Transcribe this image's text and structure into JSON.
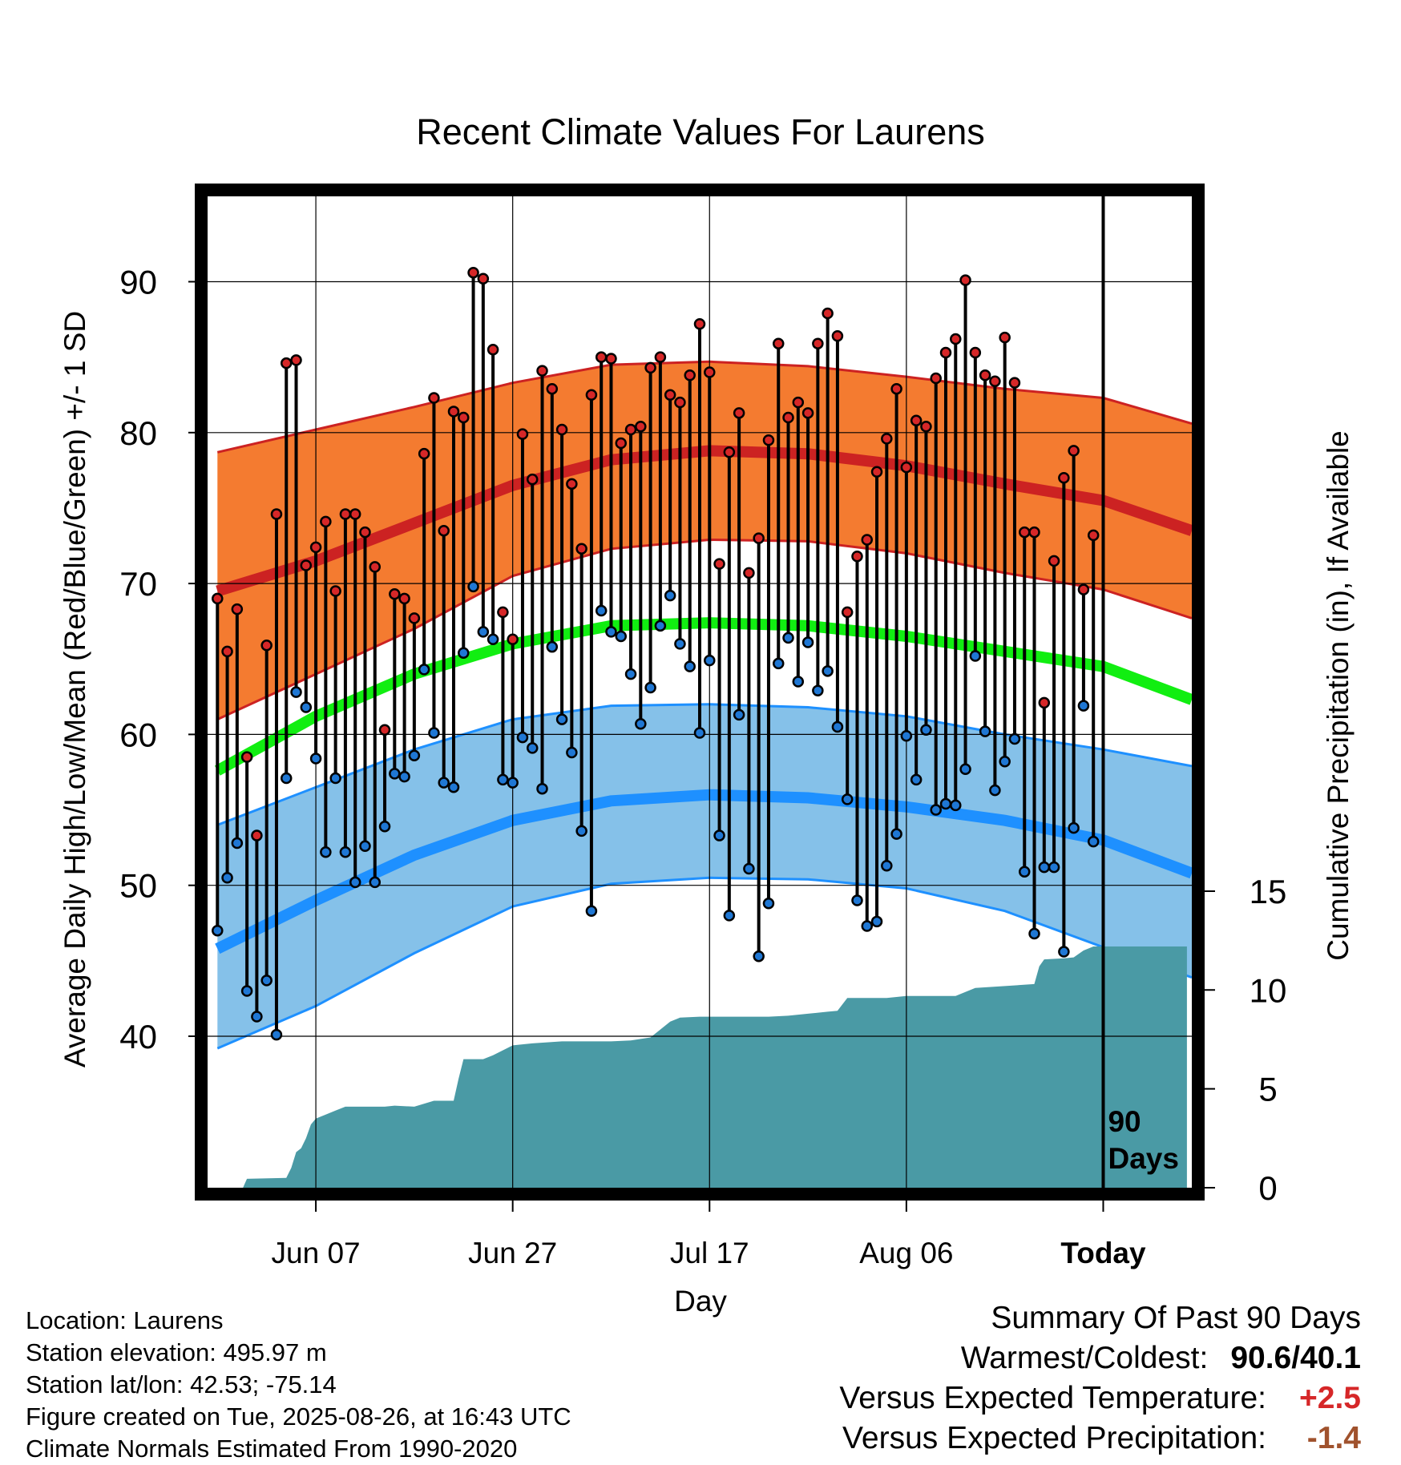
{
  "title": "Recent Climate Values For Laurens",
  "colors": {
    "high_band": "#f47b30",
    "high_mean": "#cc2222",
    "mean": "#11ee11",
    "low_band": "#85c1e9",
    "low_mean": "#1e90ff",
    "precip": "#4a9aa5",
    "high_marker": "#d62728",
    "low_marker": "#1f77d4"
  },
  "chart_data": {
    "type": "line",
    "title": "Recent Climate Values For Laurens",
    "xlabel": "Day",
    "ylabel": "Average Daily High/Low/Mean (Red/Blue/Green) +/- 1 SD",
    "y2label": "Cumulative Precipitation (in), If Available",
    "ylim": [
      30,
      96
    ],
    "y2lim": [
      0,
      15
    ],
    "y_ticks": [
      40,
      50,
      60,
      70,
      80,
      90
    ],
    "y2_ticks": [
      0,
      5,
      10,
      15
    ],
    "x_tick_labels": [
      {
        "day": 10,
        "label": "Jun 07"
      },
      {
        "day": 30,
        "label": "Jun 27"
      },
      {
        "day": 50,
        "label": "Jul 17"
      },
      {
        "day": 70,
        "label": "Aug 06"
      },
      {
        "day": 90,
        "label": "Today"
      }
    ],
    "xlim": [
      -1,
      99
    ],
    "today_marker": "90\nDays",
    "normals": {
      "days": [
        0,
        10,
        20,
        30,
        40,
        50,
        60,
        70,
        80,
        90,
        99
      ],
      "high_mean": [
        69.5,
        71.5,
        74.0,
        76.5,
        78.2,
        78.8,
        78.6,
        77.8,
        76.6,
        75.5,
        73.5
      ],
      "high_sd_upper": [
        78.7,
        80.2,
        81.7,
        83.3,
        84.5,
        84.7,
        84.4,
        83.7,
        82.9,
        82.3,
        80.6
      ],
      "high_sd_lower": [
        61.0,
        64.0,
        67.0,
        70.5,
        72.3,
        72.9,
        72.8,
        72.0,
        70.7,
        69.6,
        67.7
      ],
      "mean": [
        57.6,
        61.2,
        64.0,
        66.0,
        67.2,
        67.4,
        67.2,
        66.5,
        65.5,
        64.5,
        62.3
      ],
      "low_mean": [
        45.8,
        49.0,
        52.0,
        54.3,
        55.6,
        56.0,
        55.8,
        55.2,
        54.3,
        53.0,
        50.8
      ],
      "low_sd_upper": [
        54.0,
        56.5,
        59.0,
        61.0,
        61.9,
        62.0,
        61.8,
        61.2,
        60.0,
        59.0,
        57.9
      ],
      "low_sd_lower": [
        39.2,
        42.0,
        45.5,
        48.6,
        50.1,
        50.5,
        50.4,
        49.8,
        48.3,
        45.9,
        43.9
      ]
    },
    "daily": [
      {
        "day": 0,
        "high": 69.0,
        "low": 47.0
      },
      {
        "day": 1,
        "high": 65.5,
        "low": 50.5
      },
      {
        "day": 2,
        "high": 68.3,
        "low": 52.8
      },
      {
        "day": 3,
        "high": 58.5,
        "low": 43.0
      },
      {
        "day": 4,
        "high": 53.3,
        "low": 41.3
      },
      {
        "day": 5,
        "high": 65.9,
        "low": 43.7
      },
      {
        "day": 6,
        "high": 74.6,
        "low": 40.1
      },
      {
        "day": 7,
        "high": 84.6,
        "low": 57.1
      },
      {
        "day": 8,
        "high": 84.8,
        "low": 62.8
      },
      {
        "day": 9,
        "high": 71.2,
        "low": 61.8
      },
      {
        "day": 10,
        "high": 72.4,
        "low": 58.4
      },
      {
        "day": 11,
        "high": 74.1,
        "low": 52.2
      },
      {
        "day": 12,
        "high": 69.5,
        "low": 57.1
      },
      {
        "day": 13,
        "high": 74.6,
        "low": 52.2
      },
      {
        "day": 14,
        "high": 74.6,
        "low": 50.2
      },
      {
        "day": 15,
        "high": 73.4,
        "low": 52.6
      },
      {
        "day": 16,
        "high": 71.1,
        "low": 50.2
      },
      {
        "day": 17,
        "high": 60.3,
        "low": 53.9
      },
      {
        "day": 18,
        "high": 69.3,
        "low": 57.4
      },
      {
        "day": 19,
        "high": 69.0,
        "low": 57.2
      },
      {
        "day": 20,
        "high": 67.7,
        "low": 58.6
      },
      {
        "day": 21,
        "high": 78.6,
        "low": 64.3
      },
      {
        "day": 22,
        "high": 82.3,
        "low": 60.1
      },
      {
        "day": 23,
        "high": 73.5,
        "low": 56.8
      },
      {
        "day": 24,
        "high": 81.4,
        "low": 56.5
      },
      {
        "day": 25,
        "high": 81.0,
        "low": 65.4
      },
      {
        "day": 26,
        "high": 90.6,
        "low": 69.8
      },
      {
        "day": 27,
        "high": 90.2,
        "low": 66.8
      },
      {
        "day": 28,
        "high": 85.5,
        "low": 66.3
      },
      {
        "day": 29,
        "high": 68.1,
        "low": 57.0
      },
      {
        "day": 30,
        "high": 66.3,
        "low": 56.8
      },
      {
        "day": 31,
        "high": 79.9,
        "low": 59.8
      },
      {
        "day": 32,
        "high": 76.9,
        "low": 59.1
      },
      {
        "day": 33,
        "high": 84.1,
        "low": 56.4
      },
      {
        "day": 34,
        "high": 82.9,
        "low": 65.8
      },
      {
        "day": 35,
        "high": 80.2,
        "low": 61.0
      },
      {
        "day": 36,
        "high": 76.6,
        "low": 58.8
      },
      {
        "day": 37,
        "high": 72.3,
        "low": 53.6
      },
      {
        "day": 38,
        "high": 82.5,
        "low": 48.3
      },
      {
        "day": 39,
        "high": 85.0,
        "low": 68.2
      },
      {
        "day": 40,
        "high": 84.9,
        "low": 66.8
      },
      {
        "day": 41,
        "high": 79.3,
        "low": 66.5
      },
      {
        "day": 42,
        "high": 80.2,
        "low": 64.0
      },
      {
        "day": 43,
        "high": 80.4,
        "low": 60.7
      },
      {
        "day": 44,
        "high": 84.3,
        "low": 63.1
      },
      {
        "day": 45,
        "high": 85.0,
        "low": 67.2
      },
      {
        "day": 46,
        "high": 82.5,
        "low": 69.2
      },
      {
        "day": 47,
        "high": 82.0,
        "low": 66.0
      },
      {
        "day": 48,
        "high": 83.8,
        "low": 64.5
      },
      {
        "day": 49,
        "high": 87.2,
        "low": 60.1
      },
      {
        "day": 50,
        "high": 84.0,
        "low": 64.9
      },
      {
        "day": 51,
        "high": 71.3,
        "low": 53.3
      },
      {
        "day": 52,
        "high": 78.7,
        "low": 48.0
      },
      {
        "day": 53,
        "high": 81.3,
        "low": 61.3
      },
      {
        "day": 54,
        "high": 70.7,
        "low": 51.1
      },
      {
        "day": 55,
        "high": 73.0,
        "low": 45.3
      },
      {
        "day": 56,
        "high": 79.5,
        "low": 48.8
      },
      {
        "day": 57,
        "high": 85.9,
        "low": 64.7
      },
      {
        "day": 58,
        "high": 81.0,
        "low": 66.4
      },
      {
        "day": 59,
        "high": 82.0,
        "low": 63.5
      },
      {
        "day": 60,
        "high": 81.3,
        "low": 66.1
      },
      {
        "day": 61,
        "high": 85.9,
        "low": 62.9
      },
      {
        "day": 62,
        "high": 87.9,
        "low": 64.2
      },
      {
        "day": 63,
        "high": 86.4,
        "low": 60.5
      },
      {
        "day": 64,
        "high": 68.1,
        "low": 55.7
      },
      {
        "day": 65,
        "high": 71.8,
        "low": 49.0
      },
      {
        "day": 66,
        "high": 72.9,
        "low": 47.3
      },
      {
        "day": 67,
        "high": 77.4,
        "low": 47.6
      },
      {
        "day": 68,
        "high": 79.6,
        "low": 51.3
      },
      {
        "day": 69,
        "high": 82.9,
        "low": 53.4
      },
      {
        "day": 70,
        "high": 77.7,
        "low": 59.9
      },
      {
        "day": 71,
        "high": 80.8,
        "low": 57.0
      },
      {
        "day": 72,
        "high": 80.4,
        "low": 60.3
      },
      {
        "day": 73,
        "high": 83.6,
        "low": 55.0
      },
      {
        "day": 74,
        "high": 85.3,
        "low": 55.4
      },
      {
        "day": 75,
        "high": 86.2,
        "low": 55.3
      },
      {
        "day": 76,
        "high": 90.1,
        "low": 57.7
      },
      {
        "day": 77,
        "high": 85.3,
        "low": 65.2
      },
      {
        "day": 78,
        "high": 83.8,
        "low": 60.2
      },
      {
        "day": 79,
        "high": 83.4,
        "low": 56.3
      },
      {
        "day": 80,
        "high": 86.3,
        "low": 58.2
      },
      {
        "day": 81,
        "high": 83.3,
        "low": 59.7
      },
      {
        "day": 82,
        "high": 73.4,
        "low": 50.9
      },
      {
        "day": 83,
        "high": 73.4,
        "low": 46.8
      },
      {
        "day": 84,
        "high": 62.1,
        "low": 51.2
      },
      {
        "day": 85,
        "high": 71.5,
        "low": 51.2
      },
      {
        "day": 86,
        "high": 77.0,
        "low": 45.6
      },
      {
        "day": 87,
        "high": 78.8,
        "low": 53.8
      },
      {
        "day": 88,
        "high": 69.6,
        "low": 61.9
      },
      {
        "day": 89,
        "high": 73.2,
        "low": 52.9
      }
    ],
    "precip": {
      "days": [
        2.6,
        3,
        7,
        7.5,
        8,
        8.5,
        9,
        9.5,
        10,
        10.5,
        11,
        12,
        13,
        14,
        17,
        18,
        20,
        22,
        24,
        24.5,
        25,
        27,
        28,
        30,
        32,
        35,
        38,
        40,
        42,
        44,
        45,
        46,
        47,
        49,
        51,
        53,
        56,
        58,
        60,
        62,
        63,
        64,
        66,
        68,
        70,
        72,
        75,
        77,
        80,
        83,
        83.5,
        84,
        86,
        87,
        88,
        89,
        90,
        92,
        95,
        98.5
      ],
      "values": [
        0,
        0.45,
        0.5,
        1.0,
        1.8,
        2.0,
        2.5,
        3.2,
        3.5,
        3.6,
        3.7,
        3.9,
        4.1,
        4.1,
        4.1,
        4.15,
        4.1,
        4.4,
        4.4,
        5.5,
        6.5,
        6.5,
        6.7,
        7.2,
        7.3,
        7.4,
        7.4,
        7.4,
        7.45,
        7.6,
        8.0,
        8.4,
        8.6,
        8.65,
        8.65,
        8.65,
        8.65,
        8.7,
        8.8,
        8.9,
        8.95,
        9.6,
        9.6,
        9.6,
        9.7,
        9.7,
        9.7,
        10.1,
        10.2,
        10.3,
        11.2,
        11.55,
        11.6,
        11.65,
        12.0,
        12.2,
        12.2,
        12.2,
        12.2,
        12.2
      ]
    }
  },
  "footer": {
    "location": "Location: Laurens",
    "elevation": "Station elevation: 495.97 m",
    "latlon": "Station lat/lon: 42.53; -75.14",
    "created": "Figure created on Tue, 2025-08-26, at 16:43 UTC",
    "normals": "Climate Normals Estimated From 1990-2020"
  },
  "summary": {
    "heading": "Summary Of Past 90 Days",
    "warm_cold_label": "Warmest/Coldest:",
    "warm_cold_value": "90.6/40.1",
    "temp_label": "Versus Expected Temperature:",
    "temp_value": "+2.5",
    "precip_label": "Versus Expected Precipitation:",
    "precip_value": "-1.4"
  }
}
